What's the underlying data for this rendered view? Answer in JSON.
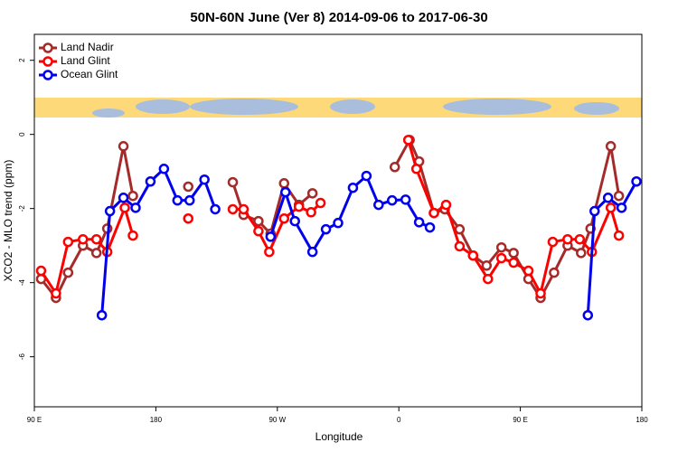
{
  "chart_data": {
    "type": "line",
    "title": "50N-60N June (Ver 8)   2014-09-06 to 2017-06-30",
    "x_label": "Longitude",
    "y_label": "XCO2 - MLO trend (ppm)",
    "xlim": [
      -270,
      180
    ],
    "xticks": [
      {
        "value": -270,
        "label": "90 E"
      },
      {
        "value": -180,
        "label": "180"
      },
      {
        "value": -90,
        "label": "90 W"
      },
      0,
      {
        "value": 90,
        "label": "90 E"
      },
      180
    ],
    "ylim": [
      -7.35,
      2.7
    ],
    "yticks": [
      -6,
      -4,
      -2,
      0,
      2
    ],
    "legend": "top-left",
    "series": [
      {
        "name": "Land Nadir",
        "color": "#a52a2a",
        "x": [
          -265,
          -254,
          -245,
          -234,
          -224,
          -216,
          -204,
          -197,
          null,
          -156,
          null,
          -123,
          -115,
          -104,
          -95,
          -85,
          -74,
          -64,
          null,
          -3,
          8,
          15,
          26,
          34,
          45,
          55,
          65,
          76,
          85,
          96,
          105,
          115,
          125,
          135,
          142,
          157,
          163
        ],
        "values": [
          -3.9,
          -4.41,
          -3.73,
          -3.0,
          -3.2,
          -2.54,
          -0.32,
          -1.66,
          null,
          -1.41,
          null,
          -1.29,
          -2.17,
          -2.34,
          -2.68,
          -1.32,
          -1.9,
          -1.59,
          null,
          -0.88,
          -0.15,
          -0.73,
          -2.12,
          -2.02,
          -2.56,
          -3.27,
          -3.54,
          -3.05,
          -3.2,
          -3.9,
          -4.41,
          -3.73,
          -3.0,
          -3.2,
          -2.54,
          -0.32,
          -1.66
        ]
      },
      {
        "name": "Land Glint",
        "color": "#ff0000",
        "x": [
          -265,
          -254,
          -245,
          -234,
          -224,
          -216,
          -203,
          -197,
          null,
          -156,
          null,
          -123,
          -115,
          -104,
          -96,
          -85,
          -74,
          -65,
          -58,
          null,
          7,
          13,
          26,
          35,
          45,
          55,
          66,
          76,
          85,
          96,
          105,
          114,
          125,
          134,
          143,
          157,
          163
        ],
        "values": [
          -3.68,
          -4.29,
          -2.9,
          -2.83,
          -2.83,
          -3.17,
          -1.98,
          -2.73,
          null,
          -2.27,
          null,
          -2.02,
          -2.02,
          -2.61,
          -3.17,
          -2.27,
          -1.95,
          -2.1,
          -1.85,
          null,
          -0.15,
          -0.93,
          -2.12,
          -1.9,
          -3.02,
          -3.27,
          -3.9,
          -3.34,
          -3.46,
          -3.68,
          -4.29,
          -2.9,
          -2.83,
          -2.83,
          -3.17,
          -1.98,
          -2.73
        ]
      },
      {
        "name": "Ocean Glint",
        "color": "#0000ee",
        "x": [
          -220,
          -214,
          -204,
          -195,
          -184,
          -174,
          -164,
          -155,
          -144,
          -136,
          null,
          -95,
          -84,
          -77,
          -64,
          -54,
          -45,
          -34,
          -24,
          -15,
          -5,
          5,
          15,
          23,
          null,
          140,
          145,
          155,
          165,
          176
        ],
        "values": [
          -4.88,
          -2.07,
          -1.71,
          -1.98,
          -1.27,
          -0.93,
          -1.78,
          -1.78,
          -1.22,
          -2.02,
          null,
          -2.76,
          -1.56,
          -2.34,
          -3.17,
          -2.56,
          -2.39,
          -1.44,
          -1.12,
          -1.9,
          -1.78,
          -1.76,
          -2.37,
          -2.51,
          null,
          -4.88,
          -2.07,
          -1.71,
          -1.98,
          -1.27
        ]
      }
    ]
  }
}
